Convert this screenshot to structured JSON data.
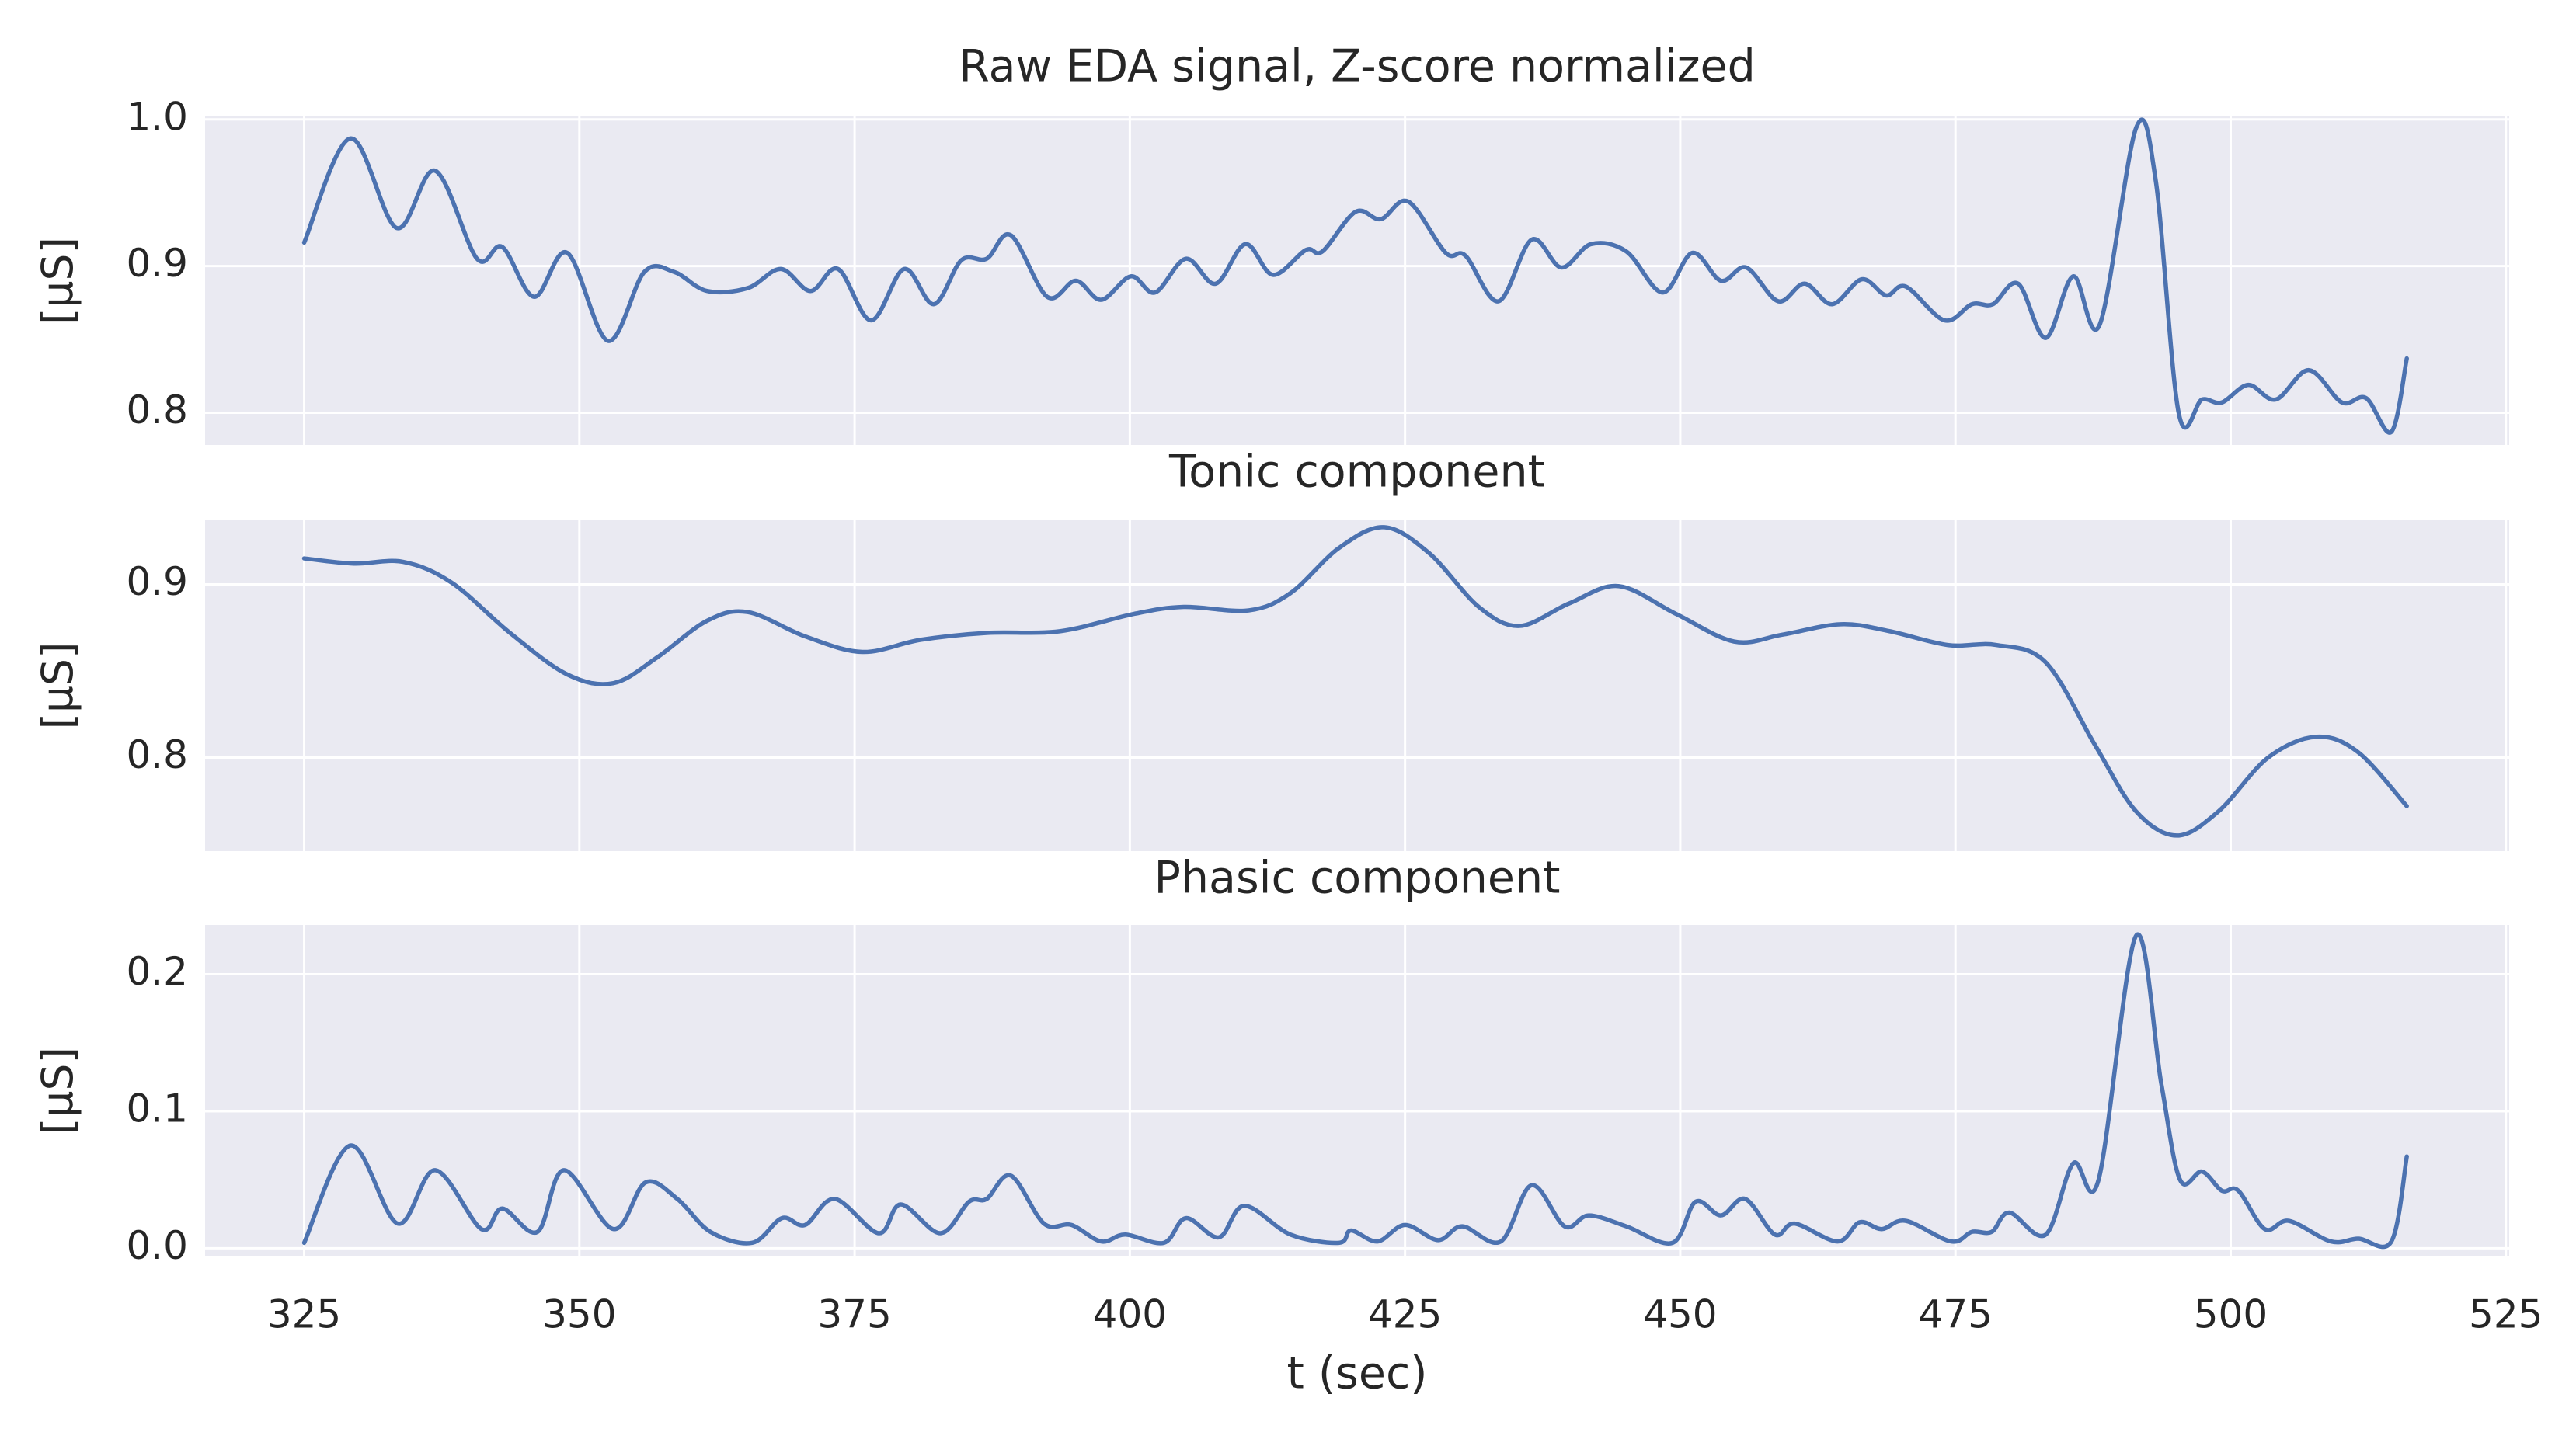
{
  "chart_data": [
    {
      "type": "line",
      "title": "Raw EDA signal, Z-score normalized",
      "ylabel": "[µS]",
      "color": "#4C72B0",
      "grid": true,
      "xlim": [
        316,
        525.3
      ],
      "xticks": [
        325,
        350,
        375,
        400,
        425,
        450,
        475,
        500,
        525
      ],
      "ylim": [
        0.778,
        1.002
      ],
      "yticks": [
        0.8,
        0.9,
        {
          "value": 1,
          "label": "1.0"
        }
      ],
      "x": [
        325,
        329.2,
        333.4,
        336.9,
        340.7,
        343,
        345.9,
        348.9,
        352.6,
        355.9,
        358.6,
        361.6,
        365.3,
        368.3,
        371,
        373.5,
        376.5,
        379.5,
        382.2,
        384.7,
        387,
        389.2,
        392.5,
        395.1,
        397.4,
        400.1,
        402.3,
        405.1,
        407.8,
        410.5,
        413,
        416,
        417.5,
        420.5,
        422.8,
        425.3,
        428.7,
        430.5,
        433.5,
        436.5,
        439.2,
        441.9,
        445.1,
        448.4,
        451.1,
        453.7,
        456,
        458.9,
        461.3,
        463.8,
        466.5,
        468.7,
        470.5,
        474,
        476.5,
        478.4,
        480.7,
        483.2,
        485.7,
        488.1,
        491.4,
        493.2,
        495.3,
        497.4,
        499.2,
        501.6,
        504.1,
        507.1,
        510.1,
        512.3,
        514.6,
        516
      ],
      "values": [
        0.916,
        0.987,
        0.926,
        0.965,
        0.905,
        0.913,
        0.879,
        0.909,
        0.849,
        0.896,
        0.896,
        0.883,
        0.885,
        0.898,
        0.883,
        0.898,
        0.863,
        0.898,
        0.874,
        0.904,
        0.905,
        0.921,
        0.879,
        0.89,
        0.877,
        0.893,
        0.882,
        0.905,
        0.888,
        0.915,
        0.894,
        0.911,
        0.91,
        0.937,
        0.932,
        0.944,
        0.909,
        0.907,
        0.876,
        0.918,
        0.899,
        0.915,
        0.91,
        0.882,
        0.909,
        0.89,
        0.899,
        0.876,
        0.888,
        0.874,
        0.891,
        0.88,
        0.886,
        0.863,
        0.874,
        0.874,
        0.888,
        0.851,
        0.893,
        0.86,
        0.994,
        0.958,
        0.799,
        0.809,
        0.807,
        0.819,
        0.809,
        0.829,
        0.807,
        0.81,
        0.787,
        0.837
      ]
    },
    {
      "type": "line",
      "title": "Tonic component",
      "ylabel": "[µS]",
      "color": "#4C72B0",
      "grid": true,
      "xlim": [
        316,
        525.3
      ],
      "xticks": [
        325,
        350,
        375,
        400,
        425,
        450,
        475,
        500,
        525
      ],
      "ylim": [
        0.746,
        0.937
      ],
      "yticks": [
        0.8,
        0.9
      ],
      "x": [
        325,
        329.5,
        334,
        338.4,
        343.7,
        348.9,
        353.1,
        357.1,
        361.6,
        365.3,
        370.5,
        375.7,
        381,
        387,
        393.7,
        400.4,
        404.9,
        410.8,
        414.6,
        419,
        423.1,
        427.2,
        431.7,
        435.4,
        439.9,
        444.4,
        449.6,
        454.9,
        459.3,
        464.6,
        469,
        474.3,
        478.7,
        483.2,
        487.7,
        491.4,
        495.1,
        498.9,
        503.4,
        507.8,
        511.6,
        516
      ],
      "values": [
        0.915,
        0.912,
        0.913,
        0.901,
        0.872,
        0.848,
        0.843,
        0.858,
        0.879,
        0.884,
        0.87,
        0.861,
        0.868,
        0.872,
        0.873,
        0.883,
        0.887,
        0.885,
        0.895,
        0.921,
        0.933,
        0.918,
        0.887,
        0.876,
        0.889,
        0.899,
        0.883,
        0.867,
        0.871,
        0.877,
        0.873,
        0.865,
        0.865,
        0.855,
        0.807,
        0.769,
        0.755,
        0.769,
        0.8,
        0.812,
        0.803,
        0.772
      ]
    },
    {
      "type": "line",
      "title": "Phasic component",
      "ylabel": "[µS]",
      "xlabel": "t (sec)",
      "color": "#4C72B0",
      "grid": true,
      "xlim": [
        316,
        525.3
      ],
      "xticks": [
        325,
        350,
        375,
        400,
        425,
        450,
        475,
        500,
        525
      ],
      "ylim": [
        -0.006,
        0.236
      ],
      "yticks": [
        {
          "value": 0,
          "label": "0.0"
        },
        0.1,
        0.2
      ],
      "x": [
        325,
        329.2,
        333.5,
        336.9,
        341.1,
        343,
        346.2,
        348.6,
        353.1,
        356,
        358.9,
        361.9,
        365.7,
        368.4,
        370.5,
        373.2,
        377.2,
        379.2,
        382.8,
        385.4,
        387,
        389.2,
        392.2,
        394.7,
        397.4,
        399.6,
        403.1,
        405.1,
        408.1,
        410.4,
        414.6,
        419,
        420.1,
        422.5,
        425,
        428,
        430.2,
        433.7,
        436.5,
        439.5,
        441.7,
        445.1,
        449.3,
        451.4,
        453.7,
        455.9,
        458.6,
        460.4,
        464.3,
        466.3,
        468.3,
        470.5,
        474.6,
        476.5,
        478.3,
        479.9,
        483.2,
        485.7,
        488,
        491.4,
        493.7,
        495.4,
        497.4,
        499.2,
        500.7,
        503.1,
        505.3,
        509.1,
        511.6,
        514.6,
        516
      ],
      "values": [
        0.004,
        0.075,
        0.018,
        0.057,
        0.014,
        0.029,
        0.012,
        0.057,
        0.014,
        0.048,
        0.036,
        0.012,
        0.004,
        0.022,
        0.017,
        0.036,
        0.011,
        0.032,
        0.011,
        0.034,
        0.036,
        0.053,
        0.018,
        0.017,
        0.005,
        0.01,
        0.004,
        0.022,
        0.008,
        0.031,
        0.01,
        0.004,
        0.013,
        0.005,
        0.017,
        0.006,
        0.016,
        0.005,
        0.046,
        0.016,
        0.024,
        0.016,
        0.004,
        0.034,
        0.024,
        0.036,
        0.01,
        0.018,
        0.005,
        0.019,
        0.014,
        0.02,
        0.005,
        0.012,
        0.012,
        0.026,
        0.01,
        0.062,
        0.05,
        0.228,
        0.12,
        0.05,
        0.056,
        0.042,
        0.042,
        0.014,
        0.02,
        0.005,
        0.007,
        0.005,
        0.067
      ]
    }
  ]
}
